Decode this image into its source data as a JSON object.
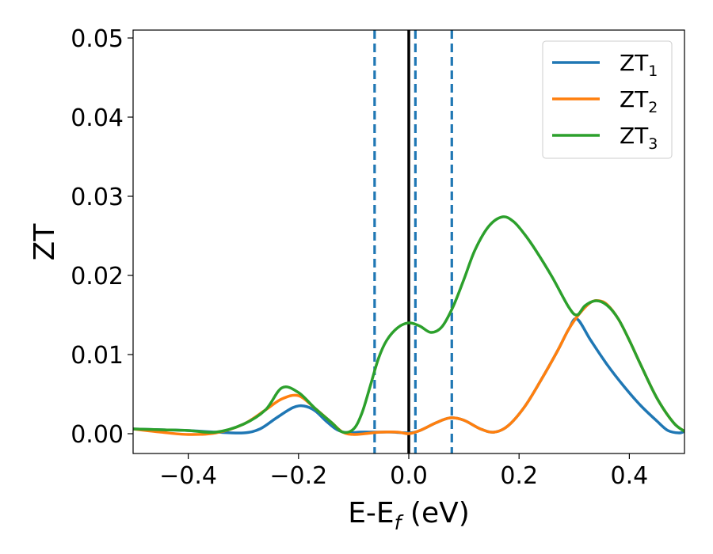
{
  "chart_data": {
    "type": "line",
    "title": "",
    "xlabel": "E-E",
    "xlabel_sub": "f",
    "xlabel_unit": " (eV)",
    "ylabel": "ZT",
    "xlim": [
      -0.5,
      0.5
    ],
    "ylim": [
      -0.0025,
      0.051
    ],
    "xticks": [
      -0.4,
      -0.2,
      0.0,
      0.2,
      0.4
    ],
    "xtick_labels": [
      "−0.4",
      "−0.2",
      "0.0",
      "0.2",
      "0.4"
    ],
    "yticks": [
      0.0,
      0.01,
      0.02,
      0.03,
      0.04,
      0.05
    ],
    "ytick_labels": [
      "0.00",
      "0.01",
      "0.02",
      "0.03",
      "0.04",
      "0.05"
    ],
    "grid": false,
    "legend_position": "top-right",
    "vlines": [
      {
        "x": 0.0,
        "style": "solid",
        "color": "#000000"
      },
      {
        "x": -0.062,
        "style": "dashed",
        "color": "#1f77b4"
      },
      {
        "x": 0.012,
        "style": "dashed",
        "color": "#1f77b4"
      },
      {
        "x": 0.078,
        "style": "dashed",
        "color": "#1f77b4"
      }
    ],
    "series": [
      {
        "name": "ZT",
        "name_sub": "1",
        "color": "#1f77b4",
        "points": [
          [
            -0.5,
            0.0006
          ],
          [
            -0.45,
            0.0005
          ],
          [
            -0.4,
            0.0004
          ],
          [
            -0.35,
            0.0002
          ],
          [
            -0.3,
            0.0001
          ],
          [
            -0.27,
            0.0006
          ],
          [
            -0.24,
            0.002
          ],
          [
            -0.21,
            0.0033
          ],
          [
            -0.19,
            0.0035
          ],
          [
            -0.17,
            0.0029
          ],
          [
            -0.15,
            0.0016
          ],
          [
            -0.13,
            0.0005
          ],
          [
            -0.11,
            0.0001
          ],
          [
            -0.09,
            0.0002
          ],
          [
            -0.06,
            0.0002
          ],
          [
            -0.03,
            0.0002
          ],
          [
            0.0,
            0.0001
          ],
          [
            0.02,
            0.0004
          ],
          [
            0.05,
            0.0014
          ],
          [
            0.075,
            0.002
          ],
          [
            0.1,
            0.0017
          ],
          [
            0.13,
            0.0006
          ],
          [
            0.155,
            0.0002
          ],
          [
            0.18,
            0.001
          ],
          [
            0.21,
            0.0034
          ],
          [
            0.24,
            0.0068
          ],
          [
            0.27,
            0.0105
          ],
          [
            0.29,
            0.0132
          ],
          [
            0.305,
            0.0145
          ],
          [
            0.33,
            0.0118
          ],
          [
            0.36,
            0.0087
          ],
          [
            0.39,
            0.006
          ],
          [
            0.42,
            0.0036
          ],
          [
            0.45,
            0.0016
          ],
          [
            0.47,
            0.0004
          ],
          [
            0.49,
            0.0001
          ],
          [
            0.5,
            0.0003
          ]
        ]
      },
      {
        "name": "ZT",
        "name_sub": "2",
        "color": "#ff7f0e",
        "points": [
          [
            -0.5,
            0.0006
          ],
          [
            -0.45,
            0.0002
          ],
          [
            -0.4,
            -0.0001
          ],
          [
            -0.35,
            0.0001
          ],
          [
            -0.3,
            0.0012
          ],
          [
            -0.26,
            0.003
          ],
          [
            -0.23,
            0.0044
          ],
          [
            -0.2,
            0.0048
          ],
          [
            -0.17,
            0.0032
          ],
          [
            -0.14,
            0.0014
          ],
          [
            -0.12,
            0.0002
          ],
          [
            -0.1,
            -0.0001
          ],
          [
            -0.08,
            0.0
          ],
          [
            -0.05,
            0.0002
          ],
          [
            -0.02,
            0.0002
          ],
          [
            0.0,
            0.0
          ],
          [
            0.02,
            0.0004
          ],
          [
            0.05,
            0.0014
          ],
          [
            0.075,
            0.002
          ],
          [
            0.1,
            0.0017
          ],
          [
            0.13,
            0.0006
          ],
          [
            0.155,
            0.0002
          ],
          [
            0.18,
            0.001
          ],
          [
            0.21,
            0.0034
          ],
          [
            0.24,
            0.0068
          ],
          [
            0.27,
            0.0105
          ],
          [
            0.29,
            0.0132
          ],
          [
            0.31,
            0.0152
          ],
          [
            0.33,
            0.0166
          ],
          [
            0.345,
            0.0168
          ],
          [
            0.36,
            0.0163
          ],
          [
            0.38,
            0.0145
          ],
          [
            0.4,
            0.0118
          ],
          [
            0.42,
            0.0088
          ],
          [
            0.45,
            0.0045
          ],
          [
            0.48,
            0.0014
          ],
          [
            0.5,
            0.0003
          ]
        ]
      },
      {
        "name": "ZT",
        "name_sub": "3",
        "color": "#2ca02c",
        "points": [
          [
            -0.5,
            0.0006
          ],
          [
            -0.45,
            0.0005
          ],
          [
            -0.4,
            0.0004
          ],
          [
            -0.35,
            0.0002
          ],
          [
            -0.3,
            0.0012
          ],
          [
            -0.26,
            0.003
          ],
          [
            -0.23,
            0.0058
          ],
          [
            -0.2,
            0.0052
          ],
          [
            -0.17,
            0.0032
          ],
          [
            -0.14,
            0.0014
          ],
          [
            -0.12,
            0.0002
          ],
          [
            -0.1,
            0.0006
          ],
          [
            -0.085,
            0.0026
          ],
          [
            -0.07,
            0.006
          ],
          [
            -0.055,
            0.0095
          ],
          [
            -0.04,
            0.0118
          ],
          [
            -0.02,
            0.0134
          ],
          [
            0.0,
            0.014
          ],
          [
            0.02,
            0.0136
          ],
          [
            0.04,
            0.0128
          ],
          [
            0.06,
            0.0135
          ],
          [
            0.08,
            0.016
          ],
          [
            0.1,
            0.0195
          ],
          [
            0.12,
            0.0232
          ],
          [
            0.145,
            0.0262
          ],
          [
            0.17,
            0.0274
          ],
          [
            0.19,
            0.0268
          ],
          [
            0.21,
            0.0252
          ],
          [
            0.23,
            0.0232
          ],
          [
            0.26,
            0.0198
          ],
          [
            0.29,
            0.016
          ],
          [
            0.305,
            0.015
          ],
          [
            0.32,
            0.0162
          ],
          [
            0.34,
            0.0168
          ],
          [
            0.36,
            0.0162
          ],
          [
            0.38,
            0.0145
          ],
          [
            0.4,
            0.0118
          ],
          [
            0.42,
            0.0088
          ],
          [
            0.45,
            0.0045
          ],
          [
            0.48,
            0.0014
          ],
          [
            0.5,
            0.0003
          ]
        ]
      }
    ]
  }
}
